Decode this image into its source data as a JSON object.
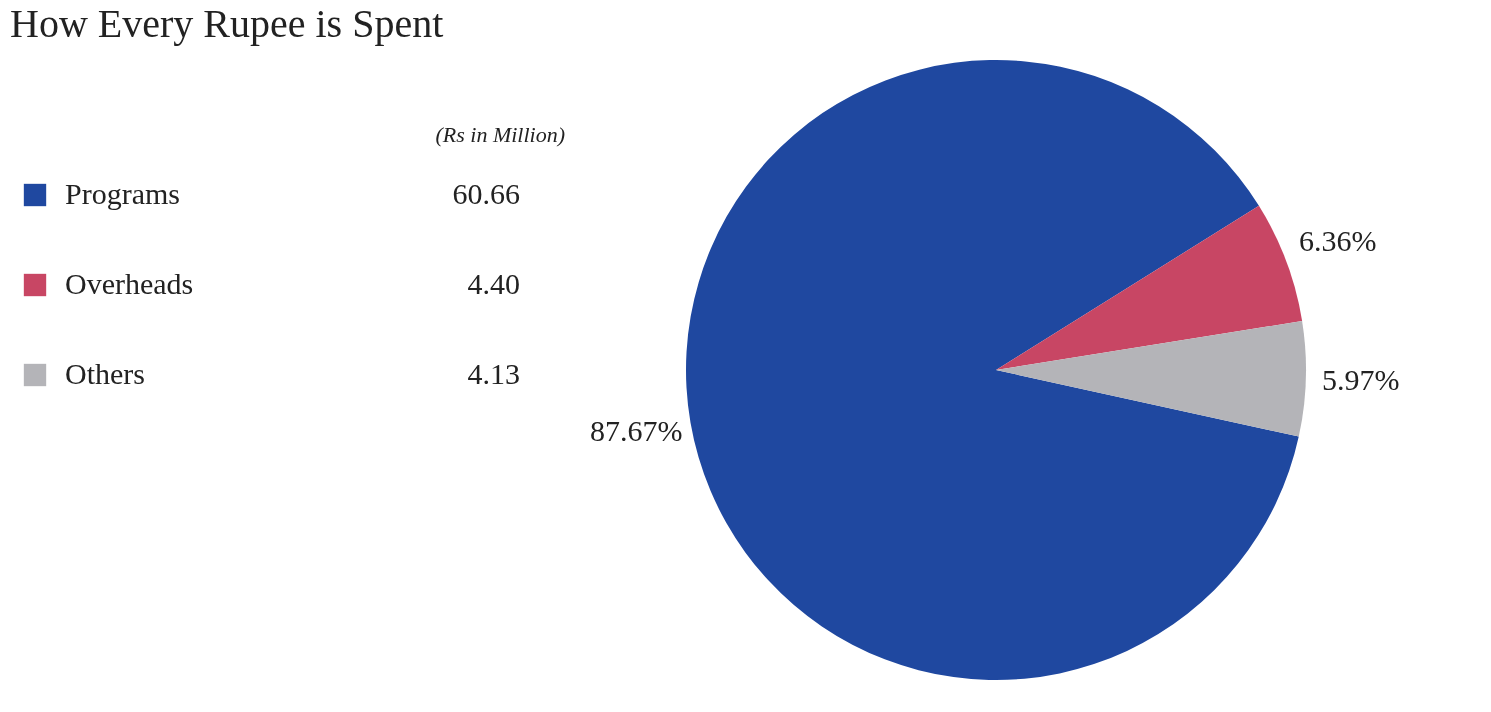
{
  "chart_data": {
    "type": "pie",
    "title": "How Every Rupee is Spent",
    "categories": [
      "Programs",
      "Overheads",
      "Others"
    ],
    "values": [
      87.67,
      6.36,
      5.97
    ],
    "colors": [
      "#1f48a0",
      "#c84664",
      "#b4b4b8"
    ],
    "value_labels": [
      "87.67%",
      "6.36%",
      "5.97%"
    ],
    "annotations": [
      "(Rs in Million)",
      "60.66",
      "4.40",
      "4.13"
    ],
    "legend": "left"
  }
}
